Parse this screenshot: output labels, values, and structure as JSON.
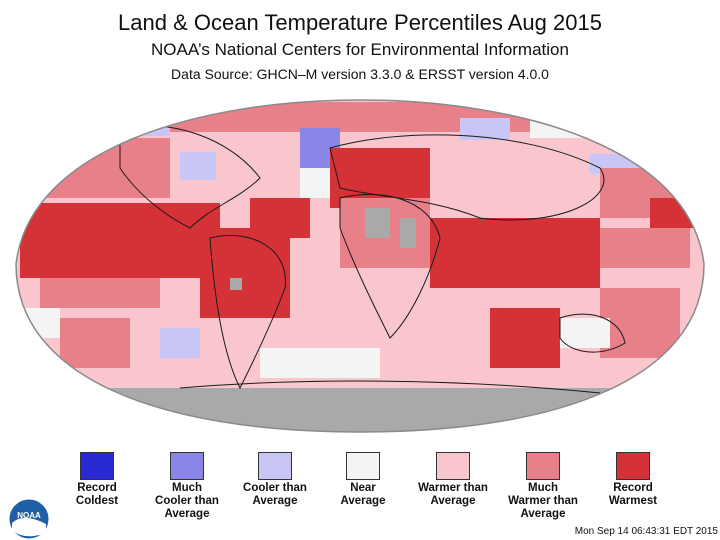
{
  "titles": {
    "main": "Land & Ocean Temperature Percentiles Aug 2015",
    "sub": "NOAA’s National Centers for Environmental Information",
    "source": "Data Source: GHCN–M version 3.3.0 & ERSST version 4.0.0"
  },
  "legend": [
    {
      "label": "Record\nColdest",
      "color": "#2a2ad2"
    },
    {
      "label": "Much\nCooler than\nAverage",
      "color": "#8a86e8"
    },
    {
      "label": "Cooler than\nAverage",
      "color": "#c8c6f6"
    },
    {
      "label": "Near\nAverage",
      "color": "#f4f4f4"
    },
    {
      "label": "Warmer than\nAverage",
      "color": "#f8c6cc"
    },
    {
      "label": "Much\nWarmer than\nAverage",
      "color": "#e8808a"
    },
    {
      "label": "Record\nWarmest",
      "color": "#d43236"
    }
  ],
  "colors": {
    "missing": "#a9a9a9",
    "land_outline": "#1a1a1a",
    "map_border": "#8a8a8a"
  },
  "logo": {
    "text": "NOAA",
    "icon": "noaa-logo-icon"
  },
  "timestamp": "Mon Sep 14 06:43:31 EDT 2015"
}
